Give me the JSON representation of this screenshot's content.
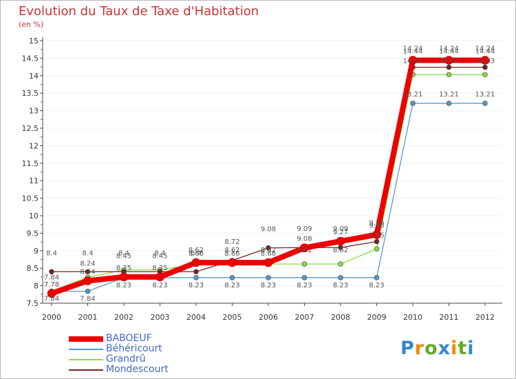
{
  "title": "Evolution du Taux de Taxe d'Habitation",
  "subtitle": "(en %)",
  "logo": "Proxiti",
  "chart_data": {
    "type": "line",
    "title": "Evolution du Taux de Taxe d'Habitation",
    "ylabel": "(en %)",
    "xlabel": "",
    "ylim": [
      7.5,
      15
    ],
    "yticks": [
      "7.5",
      "8",
      "8.5",
      "9",
      "9.5",
      "10",
      "10.5",
      "11",
      "11.5",
      "12",
      "12.5",
      "13",
      "13.5",
      "14",
      "14.5",
      "15"
    ],
    "categories": [
      "2000",
      "2001",
      "2002",
      "2003",
      "2004",
      "2005",
      "2006",
      "2007",
      "2008",
      "2009",
      "2010",
      "2011",
      "2012"
    ],
    "legend_position": "bottom-left",
    "series": [
      {
        "name": "BABOEUF",
        "color": "#ee0000",
        "values": [
          7.78,
          8.14,
          8.25,
          8.25,
          8.66,
          8.66,
          8.66,
          9.08,
          9.27,
          9.46,
          14.44,
          14.44,
          14.44
        ],
        "labels": [
          "7.78",
          "8.14",
          "8.25",
          "8.25",
          "8.66",
          "8.66",
          "8.66",
          "9.08",
          "9.27",
          "9.46",
          "14.44",
          "14.44",
          "14.44"
        ]
      },
      {
        "name": "Béhéricourt",
        "color": "#5599cc",
        "values": [
          7.84,
          7.84,
          8.23,
          8.23,
          8.23,
          8.23,
          8.23,
          8.23,
          8.23,
          8.23,
          13.21,
          13.21,
          13.21
        ],
        "labels": [
          "7.84",
          "7.84",
          "8.23",
          "8.23",
          "8.23",
          "8.23",
          "8.23",
          "8.23",
          "8.23",
          "8.23",
          "13.21",
          "13.21",
          "13.21"
        ]
      },
      {
        "name": "Grandrû",
        "color": "#88dd44",
        "values": [
          7.84,
          8.24,
          8.45,
          8.45,
          8.62,
          8.62,
          8.62,
          8.62,
          8.62,
          9.05,
          14.03,
          14.03,
          14.03
        ],
        "labels": [
          "7.84",
          "8.24",
          "8.45",
          "8.45",
          "8.62",
          "8.62",
          "8.62",
          "8.62",
          "8.62",
          "9.05",
          "14.03",
          "14.03",
          "14.03"
        ]
      },
      {
        "name": "Mondescourt",
        "color": "#772222",
        "values": [
          8.4,
          8.4,
          8.4,
          8.4,
          8.4,
          8.72,
          9.08,
          9.09,
          9.09,
          9.26,
          14.24,
          14.24,
          14.24
        ],
        "labels": [
          "8.4",
          "8.4",
          "8.4",
          "8.4",
          "8.4",
          "8.72",
          "9.08",
          "9.09",
          "9.09",
          "9.26",
          "14.24",
          "14.24",
          "14.24"
        ]
      }
    ]
  }
}
